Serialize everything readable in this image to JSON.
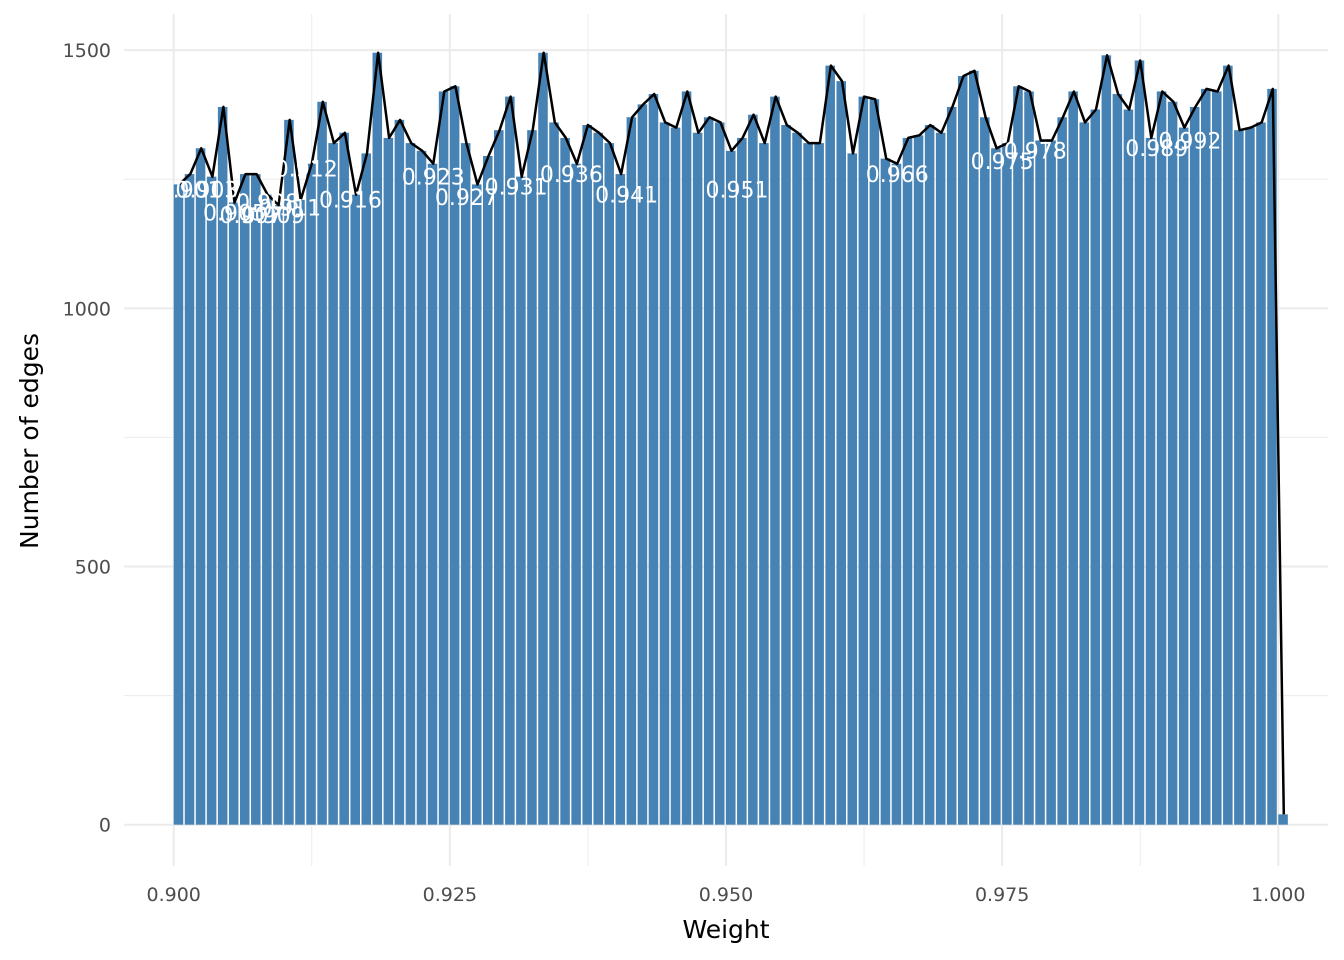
{
  "chart_data": {
    "type": "bar",
    "xlabel": "Weight",
    "ylabel": "Number of edges",
    "xlim": [
      0.8955,
      1.0045
    ],
    "ylim": [
      -80,
      1570
    ],
    "grid": true,
    "colors": {
      "bar": "#4682b4",
      "line": "#000000",
      "label": "#ffffff",
      "grid": "#ebebeb"
    },
    "x_ticks": [
      0.9,
      0.925,
      0.95,
      0.975,
      1.0
    ],
    "x_tick_labels": [
      "0.900",
      "0.925",
      "0.950",
      "0.975",
      "1.000"
    ],
    "y_ticks": [
      0,
      500,
      1000,
      1500
    ],
    "y_tick_labels": [
      "0",
      "500",
      "1000",
      "1500"
    ],
    "bin_start": 0.9,
    "bin_width": 0.001,
    "values": [
      1240,
      1260,
      1310,
      1255,
      1390,
      1205,
      1260,
      1260,
      1220,
      1200,
      1365,
      1210,
      1280,
      1400,
      1320,
      1340,
      1220,
      1300,
      1495,
      1330,
      1365,
      1320,
      1305,
      1280,
      1420,
      1430,
      1320,
      1240,
      1295,
      1345,
      1410,
      1255,
      1345,
      1495,
      1360,
      1330,
      1280,
      1355,
      1340,
      1320,
      1260,
      1370,
      1395,
      1415,
      1360,
      1350,
      1420,
      1340,
      1370,
      1360,
      1305,
      1330,
      1375,
      1320,
      1410,
      1355,
      1340,
      1320,
      1320,
      1470,
      1440,
      1300,
      1410,
      1405,
      1290,
      1280,
      1330,
      1335,
      1355,
      1340,
      1390,
      1450,
      1460,
      1370,
      1310,
      1320,
      1430,
      1420,
      1325,
      1325,
      1370,
      1420,
      1360,
      1385,
      1490,
      1415,
      1385,
      1480,
      1330,
      1420,
      1400,
      1350,
      1390,
      1425,
      1420,
      1470,
      1345,
      1350,
      1360,
      1425,
      20
    ],
    "data_labels": [
      {
        "x": 0.9015,
        "y": 1215,
        "text": "0.901"
      },
      {
        "x": 0.903,
        "y": 1215,
        "text": "0.903"
      },
      {
        "x": 0.9055,
        "y": 1170,
        "text": "0.905"
      },
      {
        "x": 0.907,
        "y": 1165,
        "text": "0.907"
      },
      {
        "x": 0.909,
        "y": 1165,
        "text": "0.909"
      },
      {
        "x": 0.9085,
        "y": 1190,
        "text": "0.908"
      },
      {
        "x": 0.9105,
        "y": 1180,
        "text": "0.911"
      },
      {
        "x": 0.912,
        "y": 1255,
        "text": "0.912"
      },
      {
        "x": 0.916,
        "y": 1195,
        "text": "0.916"
      },
      {
        "x": 0.9235,
        "y": 1240,
        "text": "0.923"
      },
      {
        "x": 0.9265,
        "y": 1200,
        "text": "0.927"
      },
      {
        "x": 0.931,
        "y": 1220,
        "text": "0.931"
      },
      {
        "x": 0.936,
        "y": 1245,
        "text": "0.936"
      },
      {
        "x": 0.941,
        "y": 1205,
        "text": "0.941"
      },
      {
        "x": 0.951,
        "y": 1215,
        "text": "0.951"
      },
      {
        "x": 0.9655,
        "y": 1245,
        "text": "0.966"
      },
      {
        "x": 0.975,
        "y": 1270,
        "text": "0.975"
      },
      {
        "x": 0.978,
        "y": 1290,
        "text": "0.978"
      },
      {
        "x": 0.989,
        "y": 1295,
        "text": "0.989"
      },
      {
        "x": 0.992,
        "y": 1310,
        "text": "0.992"
      }
    ]
  }
}
